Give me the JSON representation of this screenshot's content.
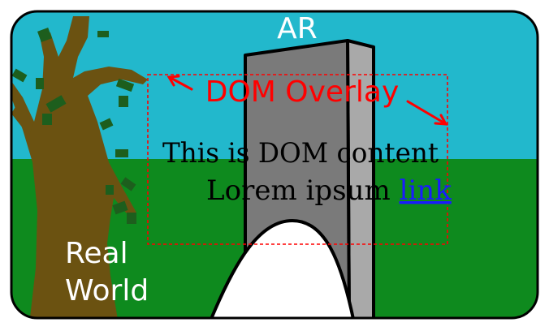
{
  "labels": {
    "ar": "AR",
    "overlay": "DOM Overlay",
    "real_world_line1": "Real",
    "real_world_line2": "World"
  },
  "dom_content": {
    "line1": "This is DOM content",
    "line2_prefix": "Lorem ipsum ",
    "link_text": "link"
  },
  "colors": {
    "sky": "#22b8cc",
    "grass": "#0e8a1e",
    "tree_trunk": "#6b5211",
    "leaf": "#1d5e1d",
    "monolith_front": "#7a7a7a",
    "monolith_side": "#a9a9a9",
    "accent_red": "#ff0000",
    "link_blue": "#1a1aff",
    "text_white": "#ffffff",
    "text_black": "#000000"
  }
}
